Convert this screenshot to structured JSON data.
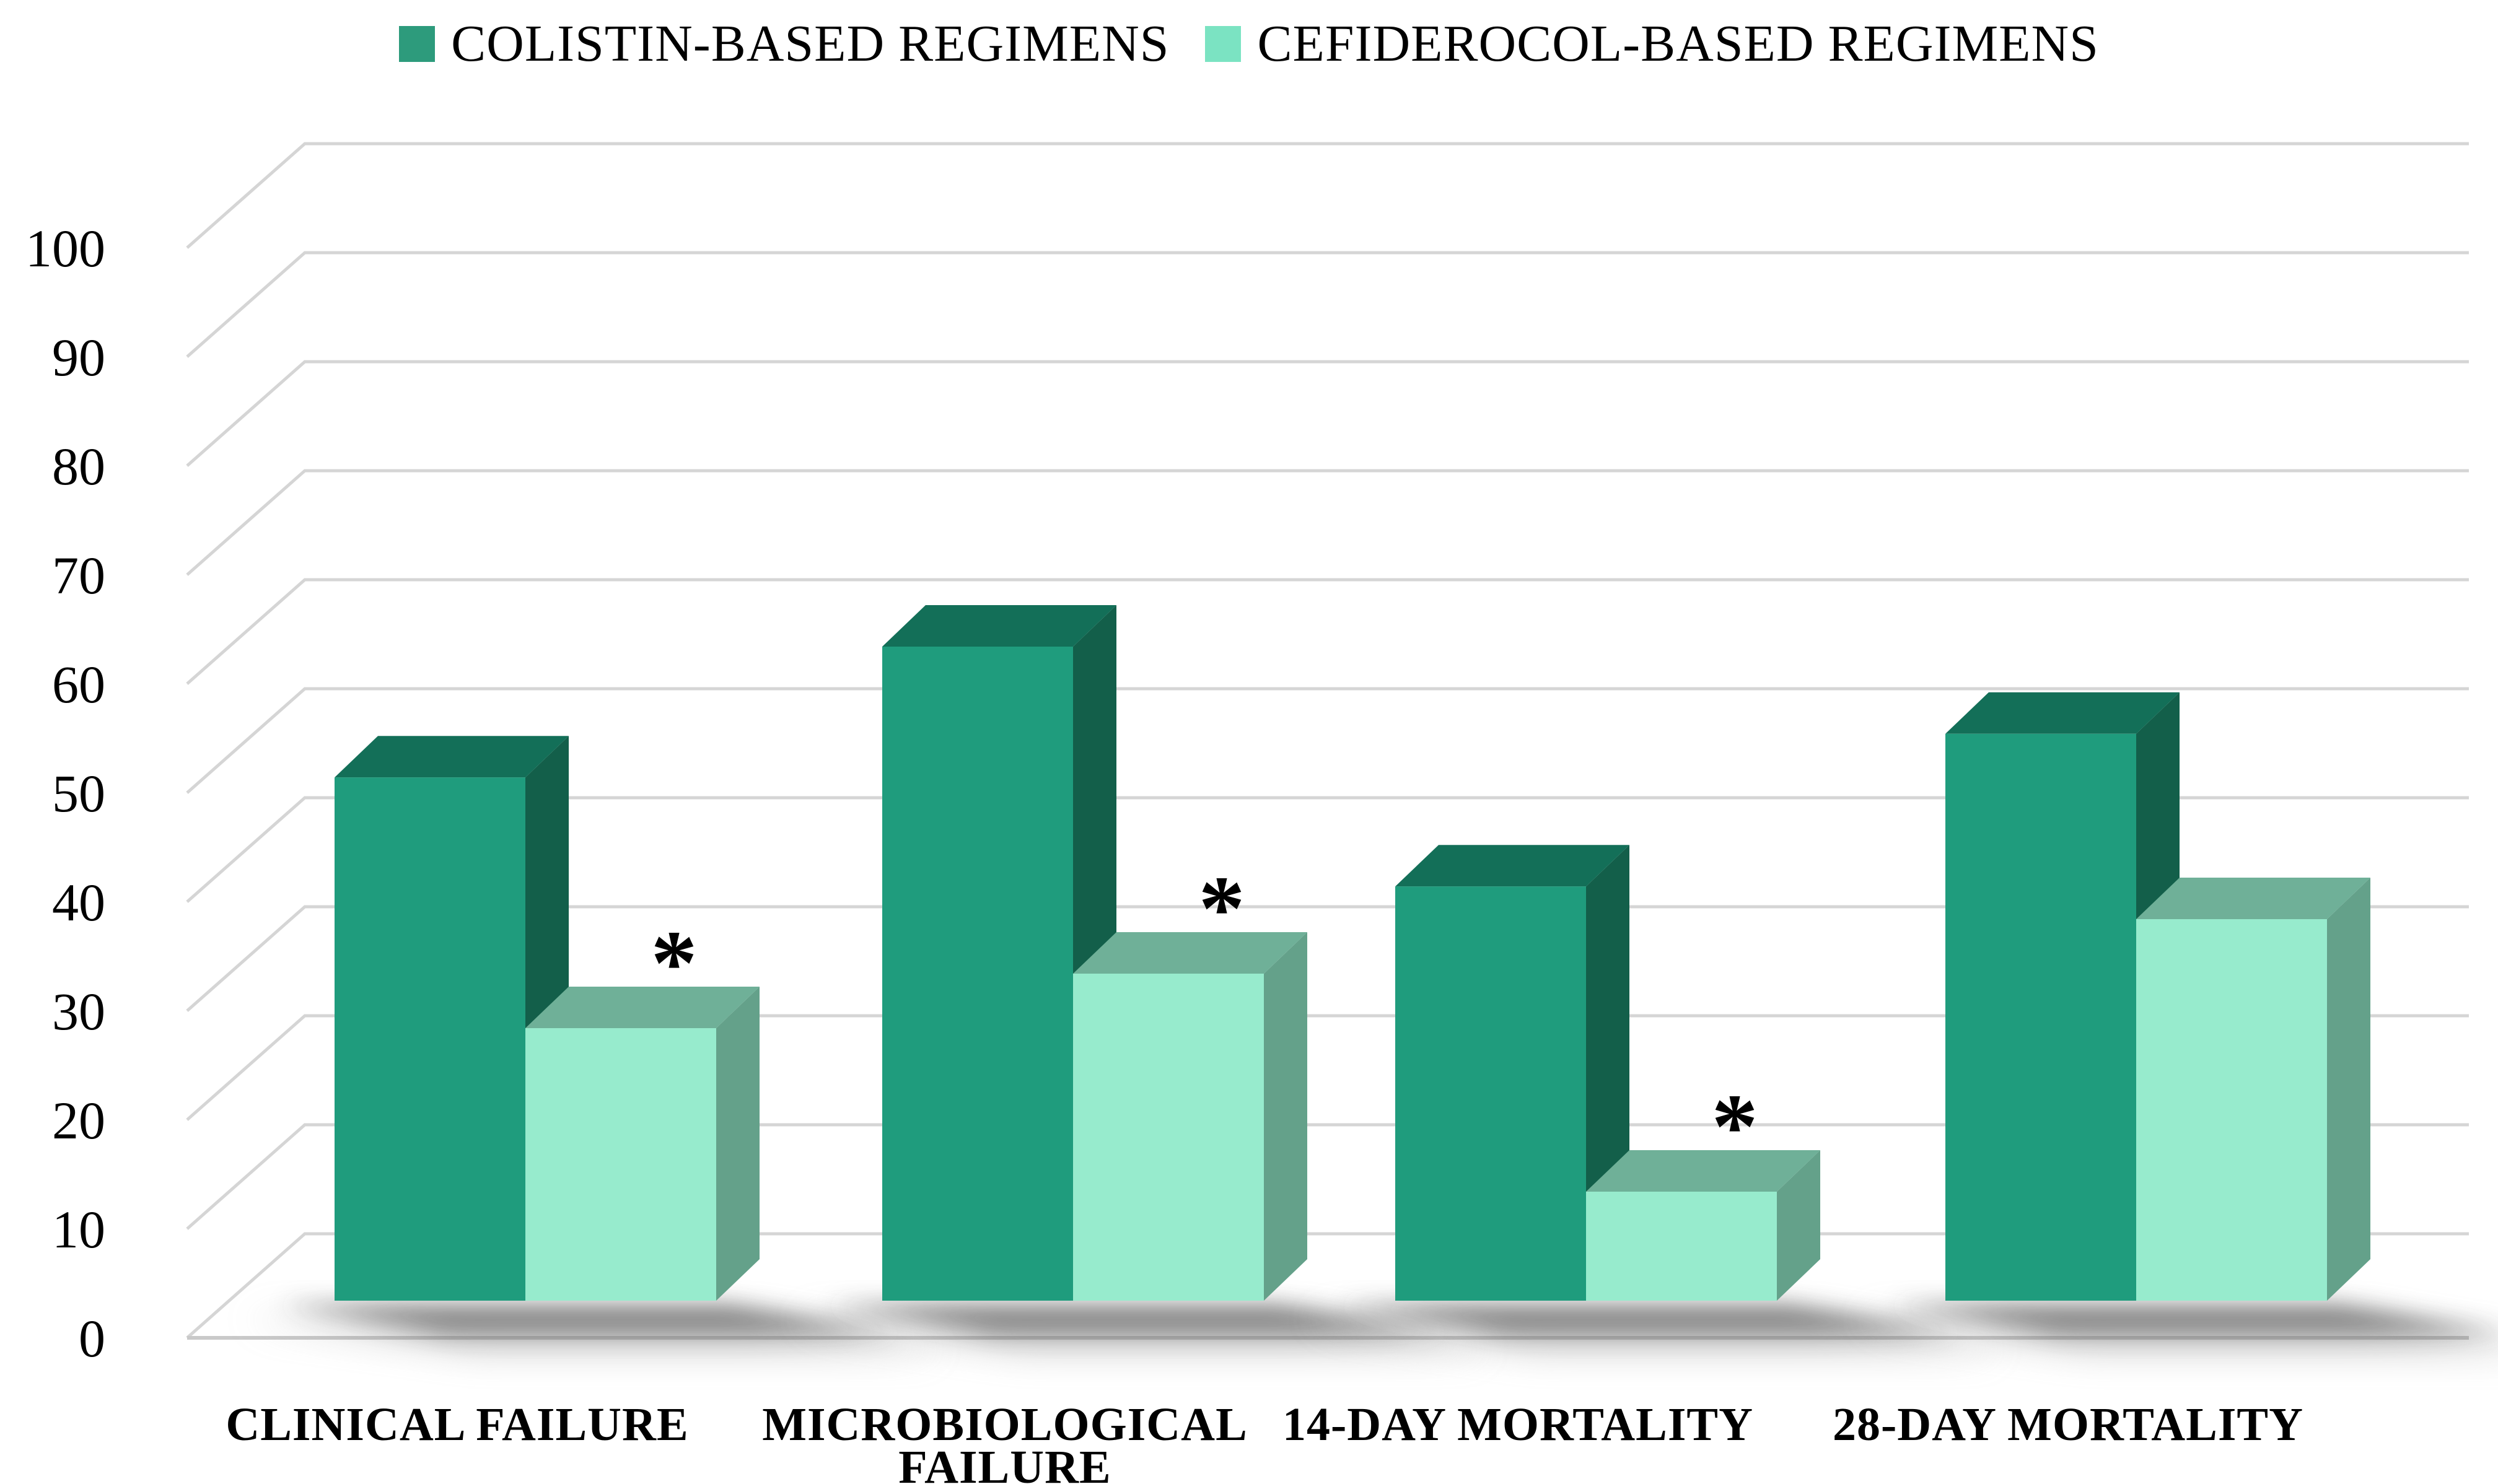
{
  "figure": {
    "background": "#FFFFFF",
    "text_color": "#000000",
    "gridline_color": "#D5D5D5",
    "baseline_color": "#C9C9C9"
  },
  "legend": {
    "items": [
      {
        "label": "COLISTIN-BASED REGIMENS",
        "color": "#2D9B7C"
      },
      {
        "label": "CEFIDEROCOL-BASED REGIMENS",
        "color": "#7BE3C2"
      }
    ]
  },
  "chart_data": {
    "type": "bar",
    "projection": "3d-clustered-column",
    "title": "",
    "xlabel": "",
    "ylabel": "",
    "categories": [
      "CLINICAL FAILURE",
      "MICROBIOLOGICAL FAILURE",
      "14-DAY MORTALITY",
      "28-DAY MORTALITY"
    ],
    "category_label_lines": [
      [
        "CLINICAL FAILURE"
      ],
      [
        "MICROBIOLOGICAL",
        "FAILURE"
      ],
      [
        "14-DAY MORTALITY"
      ],
      [
        "28-DAY MORTALITY"
      ]
    ],
    "series": [
      {
        "name": "COLISTIN-BASED REGIMENS",
        "values": [
          48,
          60,
          38,
          52
        ],
        "face_colors": {
          "front": "#1F9C7D",
          "top": "#136F58",
          "side": "#135F4A"
        }
      },
      {
        "name": "CEFIDEROCOL-BASED REGIMENS",
        "values": [
          25,
          30,
          10,
          35
        ],
        "face_colors": {
          "front": "#97EBCD",
          "top": "#6FB098",
          "side": "#64A18A"
        }
      }
    ],
    "significance": {
      "symbol": "*",
      "series": "CEFIDEROCOL-BASED REGIMENS",
      "flags": [
        true,
        true,
        true,
        false
      ]
    },
    "ylim": [
      0,
      100
    ],
    "ytick_step": 10,
    "yticks": [
      0,
      10,
      20,
      30,
      40,
      50,
      60,
      70,
      80,
      90,
      100
    ],
    "grid": true,
    "legend_position": "top"
  }
}
